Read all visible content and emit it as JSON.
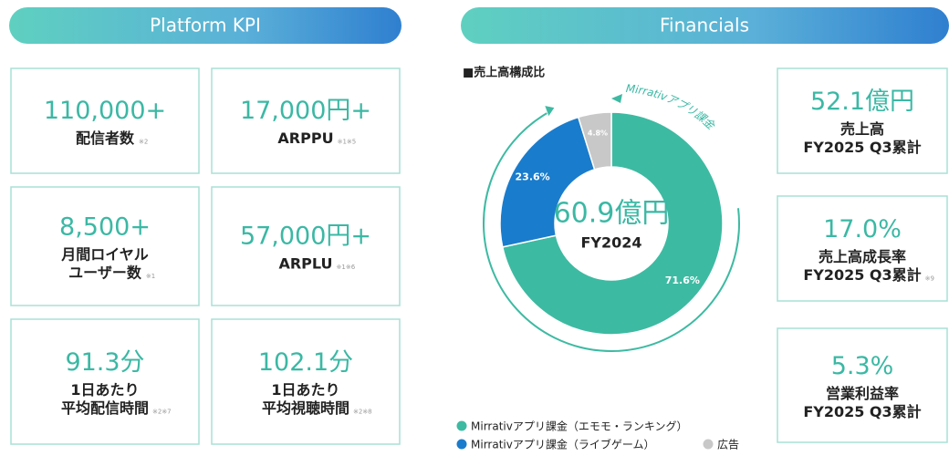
{
  "platform_kpi": {
    "title": "Platform KPI",
    "cards": [
      {
        "value": "110,000+",
        "lines": [
          "配信者数"
        ],
        "note": "※2"
      },
      {
        "value": "17,000円+",
        "lines": [
          "ARPPU"
        ],
        "note": "※1※5"
      },
      {
        "value": "8,500+",
        "lines": [
          "月間ロイヤル",
          "ユーザー数"
        ],
        "note": "※1"
      },
      {
        "value": "57,000円+",
        "lines": [
          "ARPLU"
        ],
        "note": "※1※6"
      },
      {
        "value": "91.3分",
        "lines": [
          "1日あたり",
          "平均配信時間"
        ],
        "note": "※2※7"
      },
      {
        "value": "102.1分",
        "lines": [
          "1日あたり",
          "平均視聴時間"
        ],
        "note": "※2※8"
      }
    ]
  },
  "financials": {
    "title": "Financials",
    "kpis": [
      {
        "value": "52.1億円",
        "lines": [
          "売上高",
          "FY2025 Q3累計"
        ]
      },
      {
        "value": "17.0%",
        "lines": [
          "売上高成長率",
          "FY2025 Q3累計"
        ],
        "note": "※9"
      },
      {
        "value": "5.3%",
        "lines": [
          "営業利益率",
          "FY2025 Q3累計"
        ]
      }
    ]
  },
  "chart_data": {
    "type": "pie",
    "title": "■売上高構成比",
    "center_value": "60.9億円",
    "center_label": "FY2024",
    "annotation": "Mirrativアプリ課金",
    "categories": [
      "Mirrativアプリ課金（エモモ・ランキング）",
      "Mirrativアプリ課金（ライブゲーム）",
      "広告"
    ],
    "values": [
      71.6,
      23.6,
      4.8
    ],
    "value_labels": [
      "71.6%",
      "23.6%",
      "4.8%"
    ],
    "colors": [
      "#3dbaa2",
      "#1a7ccc",
      "#c8c8c8"
    ]
  }
}
